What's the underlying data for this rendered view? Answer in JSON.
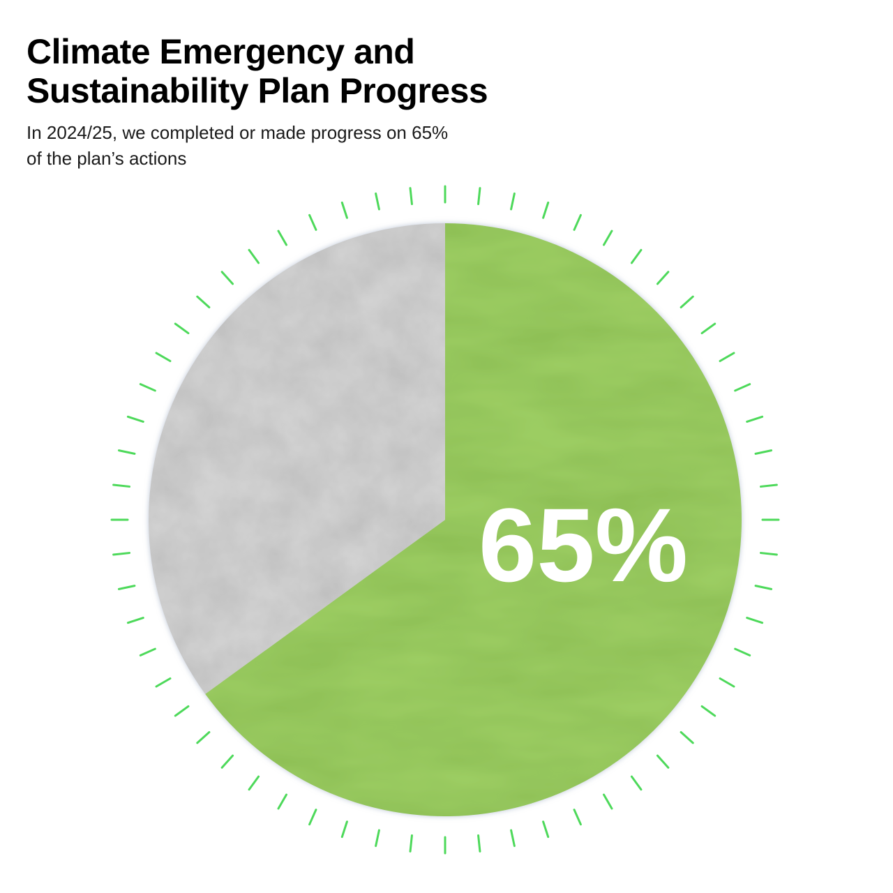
{
  "header": {
    "title_line1": "Climate Emergency and",
    "title_line2": "Sustainability Plan Progress",
    "subtitle_line1": "In 2024/25, we completed or made progress on 65%",
    "subtitle_line2": "of the plan’s actions"
  },
  "chart_data": {
    "type": "pie",
    "title": "Climate Emergency and Sustainability Plan Progress",
    "subtitle": "In 2024/25, we completed or made progress on 65% of the plan’s actions",
    "slices": [
      {
        "value": 65,
        "color": "#9ccd62",
        "label": "65%"
      },
      {
        "value": 35,
        "color": "#d4d4d4"
      }
    ],
    "center_label": "65%",
    "tick_color": "#4dd95a",
    "grid": false,
    "legend": "none"
  }
}
